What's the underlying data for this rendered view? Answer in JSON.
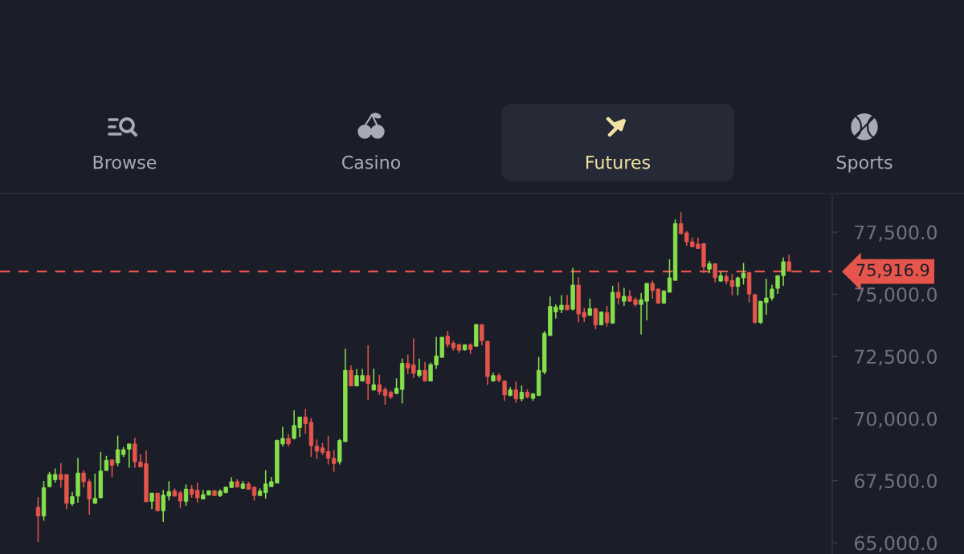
{
  "chart_data": {
    "type": "candlestick",
    "annotations": [
      "Browse",
      "Casino",
      "Futures",
      "Sports"
    ],
    "categories": [
      null,
      null,
      null,
      null,
      null,
      null,
      null,
      null,
      null,
      null,
      null,
      null,
      null,
      null,
      null,
      null,
      null,
      null,
      null,
      null,
      null,
      null,
      null,
      null,
      null,
      null,
      null,
      null,
      null,
      null,
      null,
      null,
      null,
      null,
      null,
      null,
      null,
      null,
      null,
      null,
      null,
      null,
      null,
      null,
      null,
      null,
      null,
      null,
      null,
      null,
      null,
      null,
      null,
      null,
      null,
      null,
      null,
      null,
      null,
      null,
      null,
      null,
      null,
      null,
      null,
      null,
      null,
      null,
      null,
      null,
      null,
      null,
      null,
      null,
      null,
      null,
      null,
      null,
      null,
      null,
      null,
      null,
      null,
      null,
      null,
      null,
      null,
      null,
      null,
      null,
      null,
      null,
      null,
      null,
      null,
      null,
      null,
      null,
      null,
      null,
      null,
      null,
      null,
      null,
      null,
      null,
      null,
      null,
      null,
      null,
      null,
      null,
      null,
      null,
      null,
      null,
      null,
      null,
      null,
      null,
      null,
      null,
      null,
      null,
      null,
      null,
      null,
      null,
      null,
      null,
      null,
      null,
      null
    ],
    "ohlc": [
      [
        66430,
        66840,
        65030,
        66080
      ],
      [
        66080,
        67490,
        65890,
        67220
      ],
      [
        67260,
        67850,
        67240,
        67750
      ],
      [
        67540,
        67990,
        67420,
        67750
      ],
      [
        67750,
        68210,
        67220,
        67540
      ],
      [
        67750,
        67750,
        66350,
        66590
      ],
      [
        66570,
        67050,
        66490,
        66860
      ],
      [
        66880,
        68420,
        66620,
        67810
      ],
      [
        67810,
        67920,
        67220,
        67460
      ],
      [
        67460,
        67560,
        66130,
        66760
      ],
      [
        66590,
        67780,
        66570,
        66790
      ],
      [
        66810,
        68660,
        66810,
        67890
      ],
      [
        67910,
        68500,
        67910,
        68320
      ],
      [
        68340,
        68340,
        67650,
        68120
      ],
      [
        68210,
        69310,
        68080,
        68750
      ],
      [
        68550,
        68860,
        68450,
        68750
      ],
      [
        68770,
        68980,
        68020,
        68980
      ],
      [
        68980,
        69230,
        68020,
        68260
      ],
      [
        68250,
        68560,
        68050,
        68050
      ],
      [
        68180,
        68720,
        66650,
        66650
      ],
      [
        66670,
        67000,
        66350,
        67000
      ],
      [
        67000,
        67000,
        66290,
        66290
      ],
      [
        66290,
        67130,
        65840,
        66920
      ],
      [
        66880,
        67480,
        66700,
        67060
      ],
      [
        67100,
        67190,
        66860,
        66880
      ],
      [
        67010,
        67100,
        66400,
        66680
      ],
      [
        66670,
        67350,
        66490,
        67160
      ],
      [
        67160,
        67330,
        66810,
        66950
      ],
      [
        67110,
        67420,
        66620,
        66810
      ],
      [
        66760,
        67130,
        66760,
        66940
      ],
      [
        66920,
        67100,
        66920,
        67100
      ],
      [
        67100,
        67100,
        66900,
        66900
      ],
      [
        66900,
        67150,
        66840,
        67080
      ],
      [
        67020,
        67260,
        66990,
        67240
      ],
      [
        67220,
        67640,
        67220,
        67460
      ],
      [
        67460,
        67560,
        67240,
        67240
      ],
      [
        67190,
        67490,
        67160,
        67370
      ],
      [
        67370,
        67460,
        67130,
        67150
      ],
      [
        67240,
        67260,
        66700,
        66900
      ],
      [
        66900,
        67190,
        66900,
        67080
      ],
      [
        67020,
        67920,
        66780,
        67370
      ],
      [
        67260,
        67650,
        67260,
        67460
      ],
      [
        67400,
        69150,
        67400,
        69120
      ],
      [
        68980,
        69660,
        68880,
        69200
      ],
      [
        69200,
        69390,
        68880,
        68980
      ],
      [
        69200,
        70330,
        69160,
        69720
      ],
      [
        69640,
        70060,
        69250,
        70060
      ],
      [
        70060,
        70390,
        69390,
        69790
      ],
      [
        69850,
        70020,
        68460,
        68910
      ],
      [
        68890,
        69160,
        68370,
        68690
      ],
      [
        68820,
        69020,
        68530,
        68640
      ],
      [
        68670,
        69310,
        68150,
        68400
      ],
      [
        68400,
        68730,
        67850,
        68190
      ],
      [
        68260,
        69180,
        68150,
        69120
      ],
      [
        69070,
        72810,
        69070,
        71940
      ],
      [
        71940,
        72140,
        71310,
        71310
      ],
      [
        71310,
        72000,
        71310,
        71730
      ],
      [
        71510,
        72000,
        71490,
        71730
      ],
      [
        71730,
        72950,
        70760,
        71410
      ],
      [
        71150,
        72000,
        71120,
        71360
      ],
      [
        71360,
        71760,
        70950,
        71080
      ],
      [
        71170,
        71260,
        70550,
        70930
      ],
      [
        71060,
        71120,
        70790,
        70870
      ],
      [
        71010,
        71620,
        70980,
        71220
      ],
      [
        71170,
        72410,
        70610,
        72220
      ],
      [
        72220,
        72570,
        71790,
        72030
      ],
      [
        72160,
        73220,
        71630,
        71820
      ],
      [
        71730,
        72410,
        71650,
        71940
      ],
      [
        71940,
        72270,
        71490,
        71510
      ],
      [
        71510,
        72250,
        71490,
        72170
      ],
      [
        72160,
        73290,
        72000,
        72520
      ],
      [
        72460,
        73290,
        72460,
        73270
      ],
      [
        73320,
        73520,
        72870,
        72980
      ],
      [
        73030,
        73130,
        72730,
        72840
      ],
      [
        72970,
        73020,
        72640,
        72750
      ],
      [
        72760,
        72970,
        72730,
        72970
      ],
      [
        72970,
        73020,
        72590,
        72780
      ],
      [
        72910,
        73810,
        72890,
        73780
      ],
      [
        73780,
        73780,
        72950,
        73130
      ],
      [
        73110,
        73130,
        71350,
        71690
      ],
      [
        71510,
        71840,
        71490,
        71730
      ],
      [
        71730,
        71820,
        71460,
        71540
      ],
      [
        71510,
        71540,
        70710,
        70950
      ],
      [
        70930,
        71260,
        70900,
        71150
      ],
      [
        71150,
        71490,
        70630,
        70790
      ],
      [
        70790,
        71330,
        70690,
        71060
      ],
      [
        71060,
        71170,
        70810,
        70870
      ],
      [
        70810,
        71030,
        70710,
        70990
      ],
      [
        70930,
        72480,
        70900,
        71940
      ],
      [
        71870,
        73520,
        71780,
        73430
      ],
      [
        73340,
        74910,
        73320,
        74510
      ],
      [
        74290,
        74590,
        74020,
        74490
      ],
      [
        74380,
        74970,
        74240,
        74560
      ],
      [
        74560,
        74970,
        74350,
        74380
      ],
      [
        74400,
        76070,
        74350,
        75370
      ],
      [
        75370,
        75690,
        73880,
        74210
      ],
      [
        74270,
        74450,
        73880,
        74080
      ],
      [
        74150,
        74830,
        74130,
        74420
      ],
      [
        74420,
        74450,
        73590,
        73770
      ],
      [
        73770,
        74310,
        73750,
        74290
      ],
      [
        74260,
        74530,
        73700,
        73860
      ],
      [
        73840,
        75340,
        73810,
        75080
      ],
      [
        75080,
        75480,
        74580,
        74860
      ],
      [
        74720,
        75260,
        74530,
        74920
      ],
      [
        74920,
        75170,
        74690,
        74720
      ],
      [
        74780,
        74880,
        74510,
        74590
      ],
      [
        74590,
        75050,
        73380,
        74780
      ],
      [
        74720,
        75440,
        73950,
        75440
      ],
      [
        75440,
        75550,
        74830,
        75150
      ],
      [
        75210,
        75230,
        74620,
        74640
      ],
      [
        74640,
        75170,
        74620,
        75130
      ],
      [
        75080,
        76410,
        75080,
        75660
      ],
      [
        75560,
        78010,
        75560,
        77840
      ],
      [
        77840,
        78310,
        77410,
        77440
      ],
      [
        77470,
        77540,
        76950,
        77110
      ],
      [
        77110,
        77280,
        76900,
        76910
      ],
      [
        77020,
        77280,
        76840,
        76840
      ],
      [
        77040,
        77060,
        75850,
        76100
      ],
      [
        76010,
        76340,
        75850,
        76230
      ],
      [
        76230,
        76230,
        75480,
        75670
      ],
      [
        75530,
        75910,
        75510,
        75750
      ],
      [
        75710,
        75830,
        75400,
        75530
      ],
      [
        75550,
        75820,
        74960,
        75310
      ],
      [
        75310,
        75710,
        74960,
        75660
      ],
      [
        75660,
        76260,
        75390,
        75850
      ],
      [
        75870,
        75910,
        74670,
        75010
      ],
      [
        74990,
        74990,
        73830,
        73860
      ],
      [
        73860,
        74720,
        73810,
        74720
      ],
      [
        74670,
        75620,
        74180,
        74850
      ],
      [
        74850,
        75390,
        74740,
        75210
      ],
      [
        75240,
        75750,
        75020,
        75750
      ],
      [
        75750,
        76480,
        75340,
        76310
      ],
      [
        76310,
        76590,
        75920,
        75920
      ]
    ],
    "colors": [
      "#e5554b",
      "#86e04c",
      "#86e04c",
      "#86e04c",
      "#e5554b",
      "#e5554b",
      "#86e04c",
      "#86e04c",
      "#e5554b",
      "#e5554b",
      "#86e04c",
      "#86e04c",
      "#86e04c",
      "#e5554b",
      "#86e04c",
      "#86e04c",
      "#86e04c",
      "#e5554b",
      "#e5554b",
      "#e5554b",
      "#86e04c",
      "#e5554b",
      "#86e04c",
      "#86e04c",
      "#e5554b",
      "#e5554b",
      "#86e04c",
      "#e5554b",
      "#e5554b",
      "#86e04c",
      "#86e04c",
      "#e5554b",
      "#86e04c",
      "#86e04c",
      "#86e04c",
      "#e5554b",
      "#86e04c",
      "#e5554b",
      "#e5554b",
      "#86e04c",
      "#86e04c",
      "#86e04c",
      "#86e04c",
      "#86e04c",
      "#e5554b",
      "#86e04c",
      "#86e04c",
      "#e5554b",
      "#e5554b",
      "#e5554b",
      "#e5554b",
      "#e5554b",
      "#e5554b",
      "#86e04c",
      "#86e04c",
      "#e5554b",
      "#86e04c",
      "#86e04c",
      "#e5554b",
      "#86e04c",
      "#e5554b",
      "#e5554b",
      "#e5554b",
      "#86e04c",
      "#86e04c",
      "#e5554b",
      "#e5554b",
      "#86e04c",
      "#e5554b",
      "#86e04c",
      "#86e04c",
      "#86e04c",
      "#e5554b",
      "#e5554b",
      "#e5554b",
      "#86e04c",
      "#e5554b",
      "#86e04c",
      "#e5554b",
      "#e5554b",
      "#86e04c",
      "#e5554b",
      "#e5554b",
      "#86e04c",
      "#e5554b",
      "#86e04c",
      "#e5554b",
      "#86e04c",
      "#86e04c",
      "#86e04c",
      "#86e04c",
      "#86e04c",
      "#86e04c",
      "#e5554b",
      "#86e04c",
      "#e5554b",
      "#e5554b",
      "#86e04c",
      "#e5554b",
      "#86e04c",
      "#e5554b",
      "#86e04c",
      "#e5554b",
      "#86e04c",
      "#e5554b",
      "#e5554b",
      "#86e04c",
      "#86e04c",
      "#e5554b",
      "#e5554b",
      "#86e04c",
      "#86e04c",
      "#86e04c",
      "#e5554b",
      "#e5554b",
      "#e5554b",
      "#e5554b",
      "#e5554b",
      "#86e04c",
      "#e5554b",
      "#86e04c",
      "#e5554b",
      "#e5554b",
      "#86e04c",
      "#86e04c",
      "#e5554b",
      "#e5554b",
      "#86e04c",
      "#86e04c",
      "#86e04c",
      "#86e04c",
      "#86e04c",
      "#e5554b"
    ],
    "ylim": [
      64550,
      78990
    ],
    "yticks": [
      {
        "value": 65000,
        "label": "65,000.0"
      },
      {
        "value": 67500,
        "label": "67,500.0"
      },
      {
        "value": 70000,
        "label": "70,000.0"
      },
      {
        "value": 72500,
        "label": "72,500.0"
      },
      {
        "value": 75000,
        "label": "75,000.0"
      },
      {
        "value": 77500,
        "label": "77,500.0"
      }
    ],
    "ref_lines": [
      {
        "axis": "y",
        "value": 75916.9,
        "label": "75,916.9",
        "color": "#e5554b",
        "line_style": "dashed"
      }
    ]
  }
}
